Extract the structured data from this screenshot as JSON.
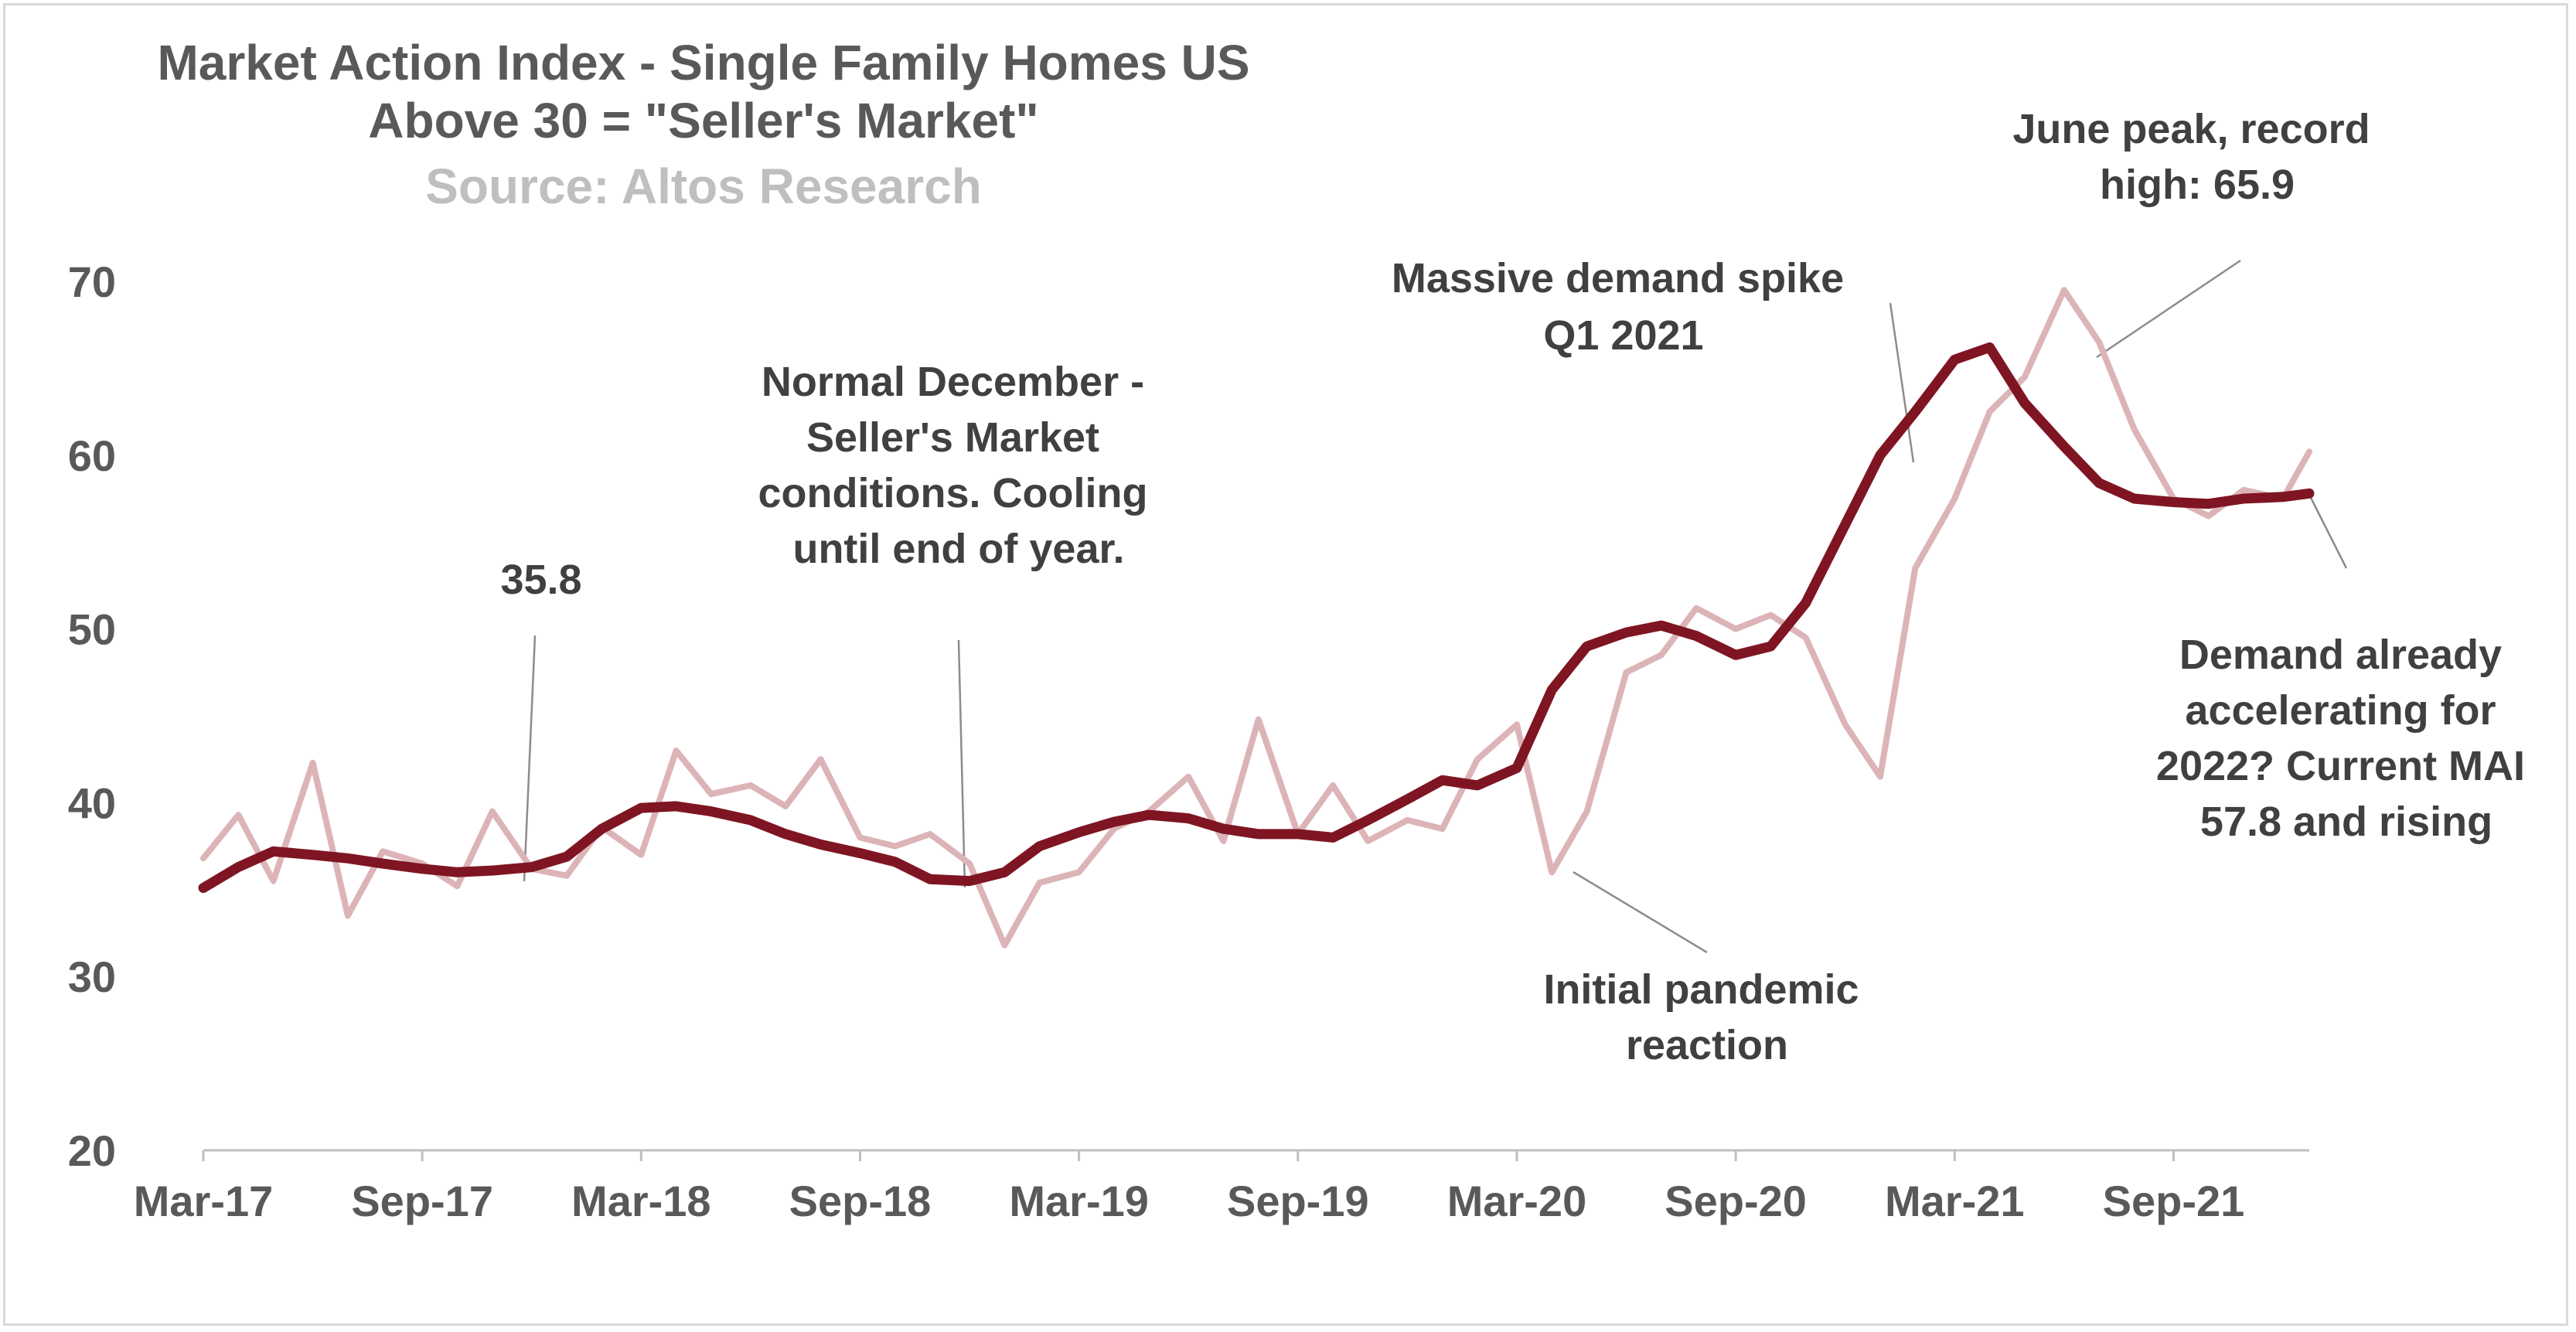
{
  "chart_data": {
    "type": "line",
    "title": "Market Action Index - Single Family Homes US",
    "subtitle": "Above 30 = \"Seller's Market\"",
    "source": "Source: Altos Research",
    "xlabel": "",
    "ylabel": "",
    "ylim": [
      20,
      70
    ],
    "yticks": [
      "20",
      "30",
      "40",
      "50",
      "60",
      "70"
    ],
    "x_tick_labels": [
      "Mar-17",
      "Sep-17",
      "Mar-18",
      "Sep-18",
      "Mar-19",
      "Sep-19",
      "Mar-20",
      "Sep-20",
      "Mar-21",
      "Sep-21"
    ],
    "grid": false,
    "legend": "none",
    "colors": {
      "weekly": "#dcb4b7",
      "smoothed": "#7f1523",
      "text": "#595959",
      "source": "#bfbfbf"
    },
    "series": [
      {
        "style": "thin-light",
        "x": [
          2017.17,
          2017.25,
          2017.33,
          2017.42,
          2017.5,
          2017.58,
          2017.67,
          2017.75,
          2017.83,
          2017.92,
          2018.0,
          2018.08,
          2018.17,
          2018.25,
          2018.33,
          2018.42,
          2018.5,
          2018.58,
          2018.67,
          2018.75,
          2018.83,
          2018.92,
          2019.0,
          2019.08,
          2019.17,
          2019.25,
          2019.33,
          2019.42,
          2019.5,
          2019.58,
          2019.67,
          2019.75,
          2019.83,
          2019.92,
          2020.0,
          2020.08,
          2020.17,
          2020.25,
          2020.33,
          2020.42,
          2020.5,
          2020.58,
          2020.67,
          2020.75,
          2020.83,
          2020.92,
          2021.0,
          2021.08,
          2021.17,
          2021.25,
          2021.33,
          2021.42,
          2021.5,
          2021.58,
          2021.67,
          2021.75,
          2021.83,
          2021.92,
          2021.98
        ],
        "values": [
          36.8,
          39.3,
          35.5,
          42.3,
          33.5,
          37.2,
          36.5,
          35.2,
          39.5,
          36.2,
          35.8,
          38.6,
          37.0,
          43.0,
          40.5,
          41.0,
          39.8,
          42.5,
          38.0,
          37.5,
          38.2,
          36.5,
          31.8,
          35.4,
          36.0,
          38.5,
          39.5,
          41.5,
          37.8,
          44.8,
          38.2,
          41.0,
          37.8,
          39.0,
          38.5,
          42.5,
          44.5,
          36.0,
          39.5,
          47.5,
          48.5,
          51.2,
          50.0,
          50.8,
          49.5,
          44.5,
          41.5,
          53.5,
          57.5,
          62.5,
          64.5,
          69.5,
          66.5,
          61.5,
          57.5,
          56.5,
          58.0,
          57.5,
          60.2
        ]
      },
      {
        "style": "thick-dark",
        "x": [
          2017.17,
          2017.25,
          2017.33,
          2017.42,
          2017.5,
          2017.58,
          2017.67,
          2017.75,
          2017.83,
          2017.92,
          2018.0,
          2018.08,
          2018.17,
          2018.25,
          2018.33,
          2018.42,
          2018.5,
          2018.58,
          2018.67,
          2018.75,
          2018.83,
          2018.92,
          2019.0,
          2019.08,
          2019.17,
          2019.25,
          2019.33,
          2019.42,
          2019.5,
          2019.58,
          2019.67,
          2019.75,
          2019.83,
          2019.92,
          2020.0,
          2020.08,
          2020.17,
          2020.25,
          2020.33,
          2020.42,
          2020.5,
          2020.58,
          2020.67,
          2020.75,
          2020.83,
          2020.92,
          2021.0,
          2021.08,
          2021.17,
          2021.25,
          2021.33,
          2021.42,
          2021.5,
          2021.58,
          2021.67,
          2021.75,
          2021.83,
          2021.92,
          2021.98
        ],
        "values": [
          35.1,
          36.3,
          37.2,
          37.0,
          36.8,
          36.5,
          36.2,
          36.0,
          36.1,
          36.3,
          36.9,
          38.5,
          39.7,
          39.8,
          39.5,
          39.0,
          38.2,
          37.6,
          37.1,
          36.6,
          35.6,
          35.5,
          36.0,
          37.5,
          38.3,
          38.9,
          39.3,
          39.1,
          38.5,
          38.2,
          38.2,
          38.0,
          39.0,
          40.2,
          41.3,
          41.0,
          42.0,
          46.5,
          49.0,
          49.8,
          50.2,
          49.6,
          48.5,
          49.0,
          51.5,
          56.0,
          60.0,
          62.5,
          65.5,
          66.2,
          63.0,
          60.5,
          58.4,
          57.5,
          57.3,
          57.2,
          57.5,
          57.6,
          57.8
        ]
      }
    ],
    "annotations": [
      {
        "lines": [
          "35.8"
        ]
      },
      {
        "lines": [
          "Normal December -",
          "Seller's Market",
          "conditions. Cooling",
          "until end of year."
        ]
      },
      {
        "lines": [
          "Massive demand spike",
          "Q1 2021"
        ]
      },
      {
        "lines": [
          "June peak, record",
          "high: 65.9"
        ]
      },
      {
        "lines": [
          "Initial pandemic",
          "reaction"
        ]
      },
      {
        "lines": [
          "Demand already",
          "accelerating for",
          "2022? Current MAI",
          "57.8 and rising"
        ]
      }
    ]
  }
}
